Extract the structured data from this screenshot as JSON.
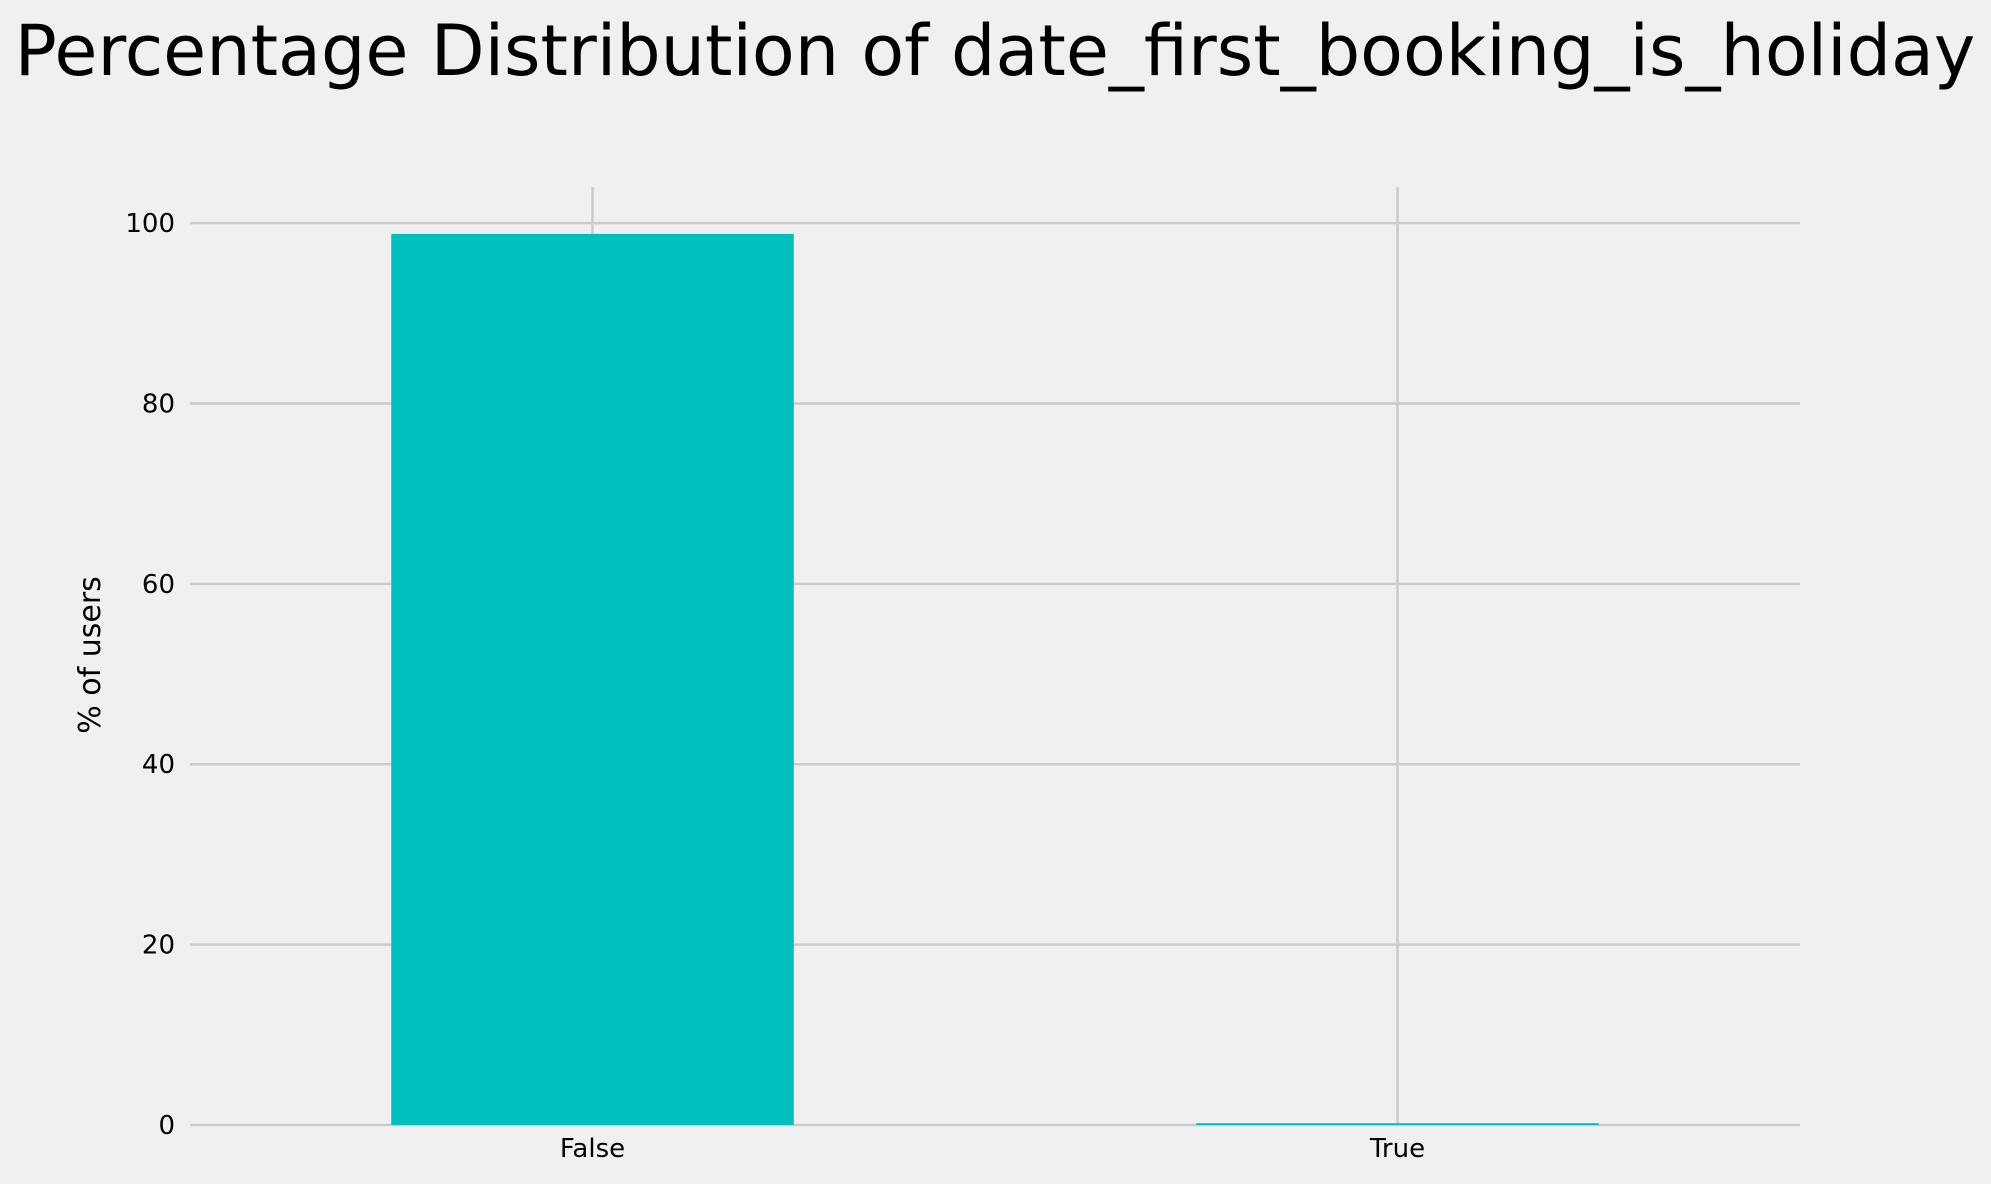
{
  "chart_data": {
    "type": "bar",
    "title": "Percentage Distribution of date_first_booking_is_holiday",
    "xlabel": "",
    "ylabel": "% of users",
    "categories": [
      "False",
      "True"
    ],
    "values": [
      98.8,
      0.2
    ],
    "ylim": [
      0,
      104
    ],
    "yticks": [
      0,
      20,
      40,
      60,
      80,
      100
    ],
    "grid": true,
    "legend": "none",
    "colors": {
      "background": "#f0f0f0",
      "bar": "#00bfbf",
      "grid": "#cbcbcb"
    }
  }
}
